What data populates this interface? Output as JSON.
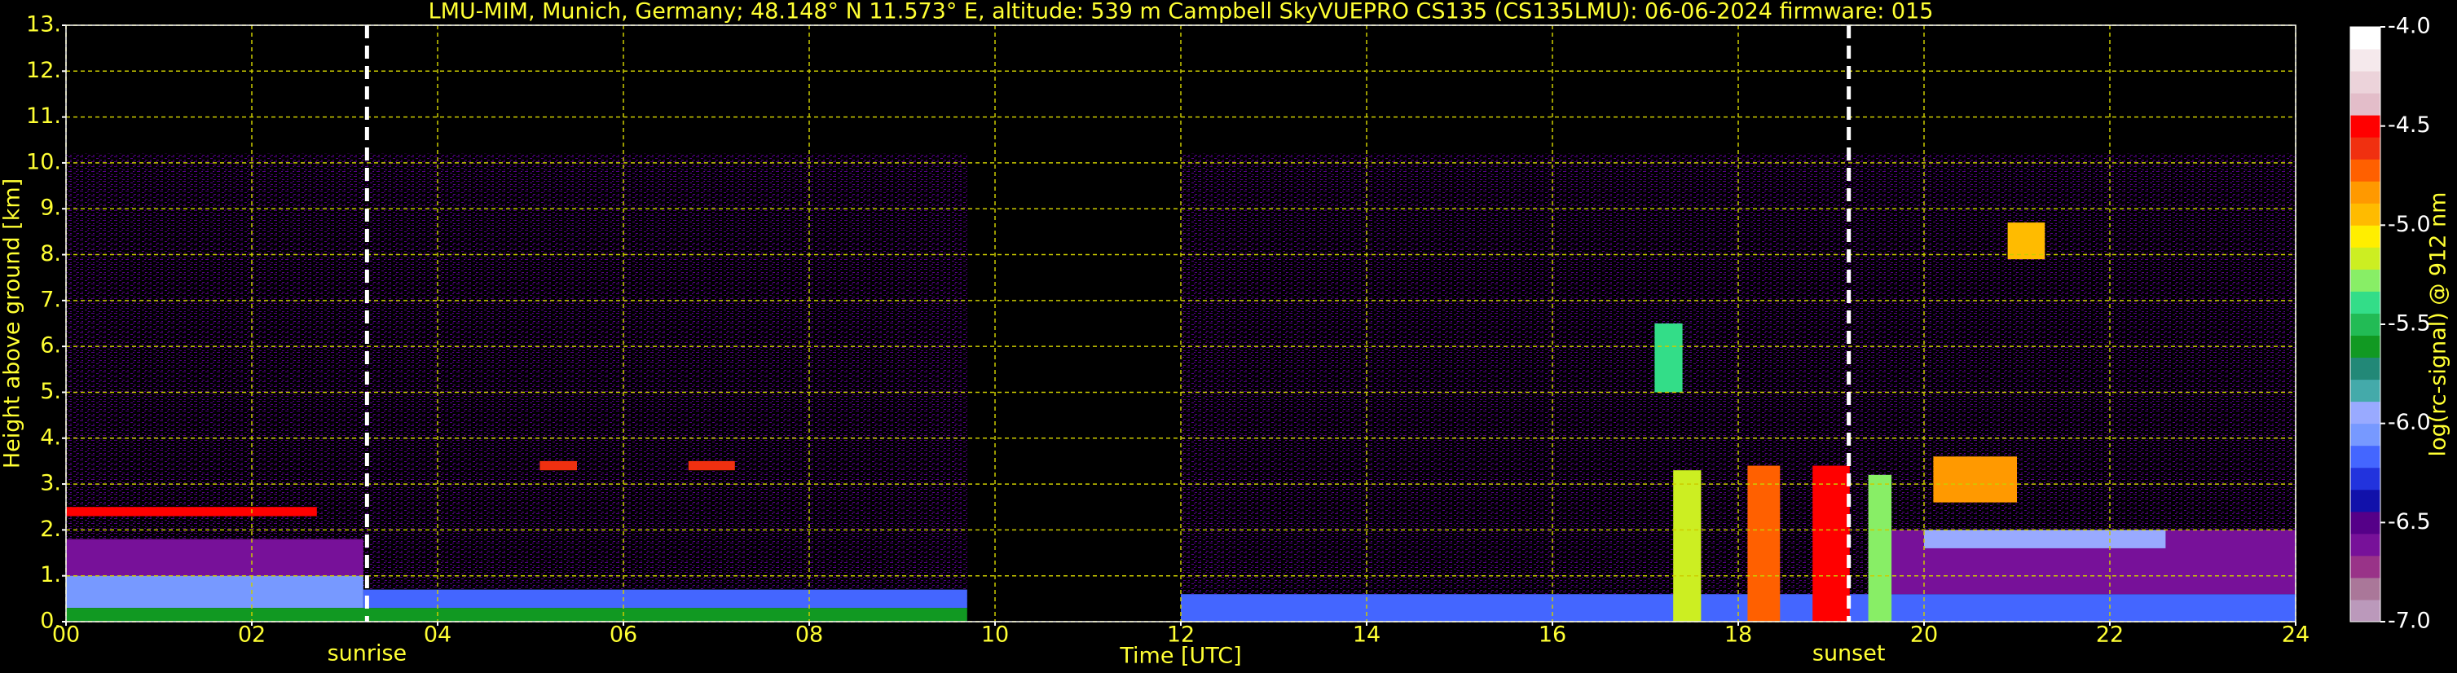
{
  "chart_data": {
    "type": "heatmap",
    "title": "LMU-MIM, Munich, Germany; 48.148° N 11.573° E, altitude: 539 m    Campbell SkyVUEPRO CS135 (CS135LMU): 06-06-2024    firmware: 015",
    "xlabel": "Time [UTC]",
    "ylabel": "Height above ground [km]",
    "xlim": [
      0,
      24
    ],
    "xticks": [
      {
        "value": 0,
        "label": "00"
      },
      {
        "value": 2,
        "label": "02"
      },
      {
        "value": 4,
        "label": "04"
      },
      {
        "value": 6,
        "label": "06"
      },
      {
        "value": 8,
        "label": "08"
      },
      10,
      12,
      14,
      16,
      18,
      20,
      22,
      24
    ],
    "ylim": [
      0,
      13
    ],
    "yticks": [
      {
        "value": 0,
        "label": "0."
      },
      {
        "value": 1,
        "label": "1."
      },
      {
        "value": 2,
        "label": "2."
      },
      {
        "value": 3,
        "label": "3."
      },
      {
        "value": 4,
        "label": "4."
      },
      {
        "value": 5,
        "label": "5."
      },
      {
        "value": 6,
        "label": "6."
      },
      {
        "value": 7,
        "label": "7."
      },
      {
        "value": 8,
        "label": "8."
      },
      {
        "value": 9,
        "label": "9."
      },
      {
        "value": 10,
        "label": "10."
      },
      {
        "value": 11,
        "label": "11."
      },
      {
        "value": 12,
        "label": "12."
      },
      {
        "value": 13,
        "label": "13."
      }
    ],
    "grid": true,
    "grid_color": "#cccc00",
    "text_color": "#ffff33",
    "markers": [
      {
        "label": "sunrise",
        "x": 3.24
      },
      {
        "label": "sunset",
        "x": 19.19
      }
    ],
    "colorbar": {
      "label": "log(rc-signal) @ 912 nm",
      "clim": [
        -7,
        -4
      ],
      "ticks": [
        {
          "value": -4,
          "label": "-4.0"
        },
        -4.5,
        {
          "value": -5,
          "label": "-5.0"
        },
        -5.5,
        {
          "value": -6,
          "label": "-6.0"
        },
        -6.5,
        {
          "value": -7,
          "label": "-7.0"
        }
      ],
      "colors": [
        "#bb99bb",
        "#aa7799",
        "#993388",
        "#771199",
        "#550088",
        "#1111aa",
        "#2233dd",
        "#4466ff",
        "#7799ff",
        "#99aaff",
        "#44aaaa",
        "#228877",
        "#119922",
        "#22bb55",
        "#33dd88",
        "#88ee66",
        "#ccee22",
        "#ffee00",
        "#ffbb00",
        "#ff9900",
        "#ff6000",
        "#f03010",
        "#ff0000",
        "#e3bdc9",
        "#ecd3da",
        "#f5e9ec",
        "#ffffff"
      ]
    },
    "heatmap": {
      "noise": [
        {
          "x": [
            0,
            9.7
          ],
          "y": [
            0.3,
            10.2
          ],
          "value": -6.45
        },
        {
          "x": [
            12,
            24
          ],
          "y": [
            0.3,
            10.2
          ],
          "value": -6.45
        }
      ],
      "layers": [
        {
          "x": [
            0,
            3.2
          ],
          "y": [
            1.0,
            1.8
          ],
          "value": -6.6
        },
        {
          "x": [
            0,
            3.2
          ],
          "y": [
            0.3,
            1.0
          ],
          "value": -6.1
        },
        {
          "x": [
            0,
            9.7
          ],
          "y": [
            0,
            0.3
          ],
          "value": -5.6
        },
        {
          "x": [
            3.2,
            9.7
          ],
          "y": [
            0.3,
            0.7
          ],
          "value": -6.2
        },
        {
          "x": [
            0,
            2.7
          ],
          "y": [
            2.3,
            2.5
          ],
          "value": -4.5
        },
        {
          "x": [
            12,
            24
          ],
          "y": [
            0,
            0.6
          ],
          "value": -6.2
        },
        {
          "x": [
            19.4,
            24
          ],
          "y": [
            0.6,
            2.0
          ],
          "value": -6.6
        },
        {
          "x": [
            17.3,
            17.6
          ],
          "y": [
            0,
            3.3
          ],
          "value": -5.2
        },
        {
          "x": [
            18.1,
            18.45
          ],
          "y": [
            0,
            3.4
          ],
          "value": -4.7
        },
        {
          "x": [
            18.8,
            19.2
          ],
          "y": [
            0,
            3.4
          ],
          "value": -4.5
        },
        {
          "x": [
            19.4,
            19.65
          ],
          "y": [
            0,
            3.2
          ],
          "value": -5.3
        },
        {
          "x": [
            20.1,
            21.0
          ],
          "y": [
            2.6,
            3.6
          ],
          "value": -4.8
        },
        {
          "x": [
            20.9,
            21.3
          ],
          "y": [
            7.9,
            8.7
          ],
          "value": -5.0
        },
        {
          "x": [
            17.1,
            17.4
          ],
          "y": [
            5.0,
            6.5
          ],
          "value": -5.4
        },
        {
          "x": [
            5.1,
            5.5
          ],
          "y": [
            3.3,
            3.5
          ],
          "value": -4.6
        },
        {
          "x": [
            6.7,
            7.2
          ],
          "y": [
            3.3,
            3.5
          ],
          "value": -4.6
        },
        {
          "x": [
            20.0,
            22.6
          ],
          "y": [
            1.6,
            2.0
          ],
          "value": -5.9
        }
      ]
    }
  }
}
